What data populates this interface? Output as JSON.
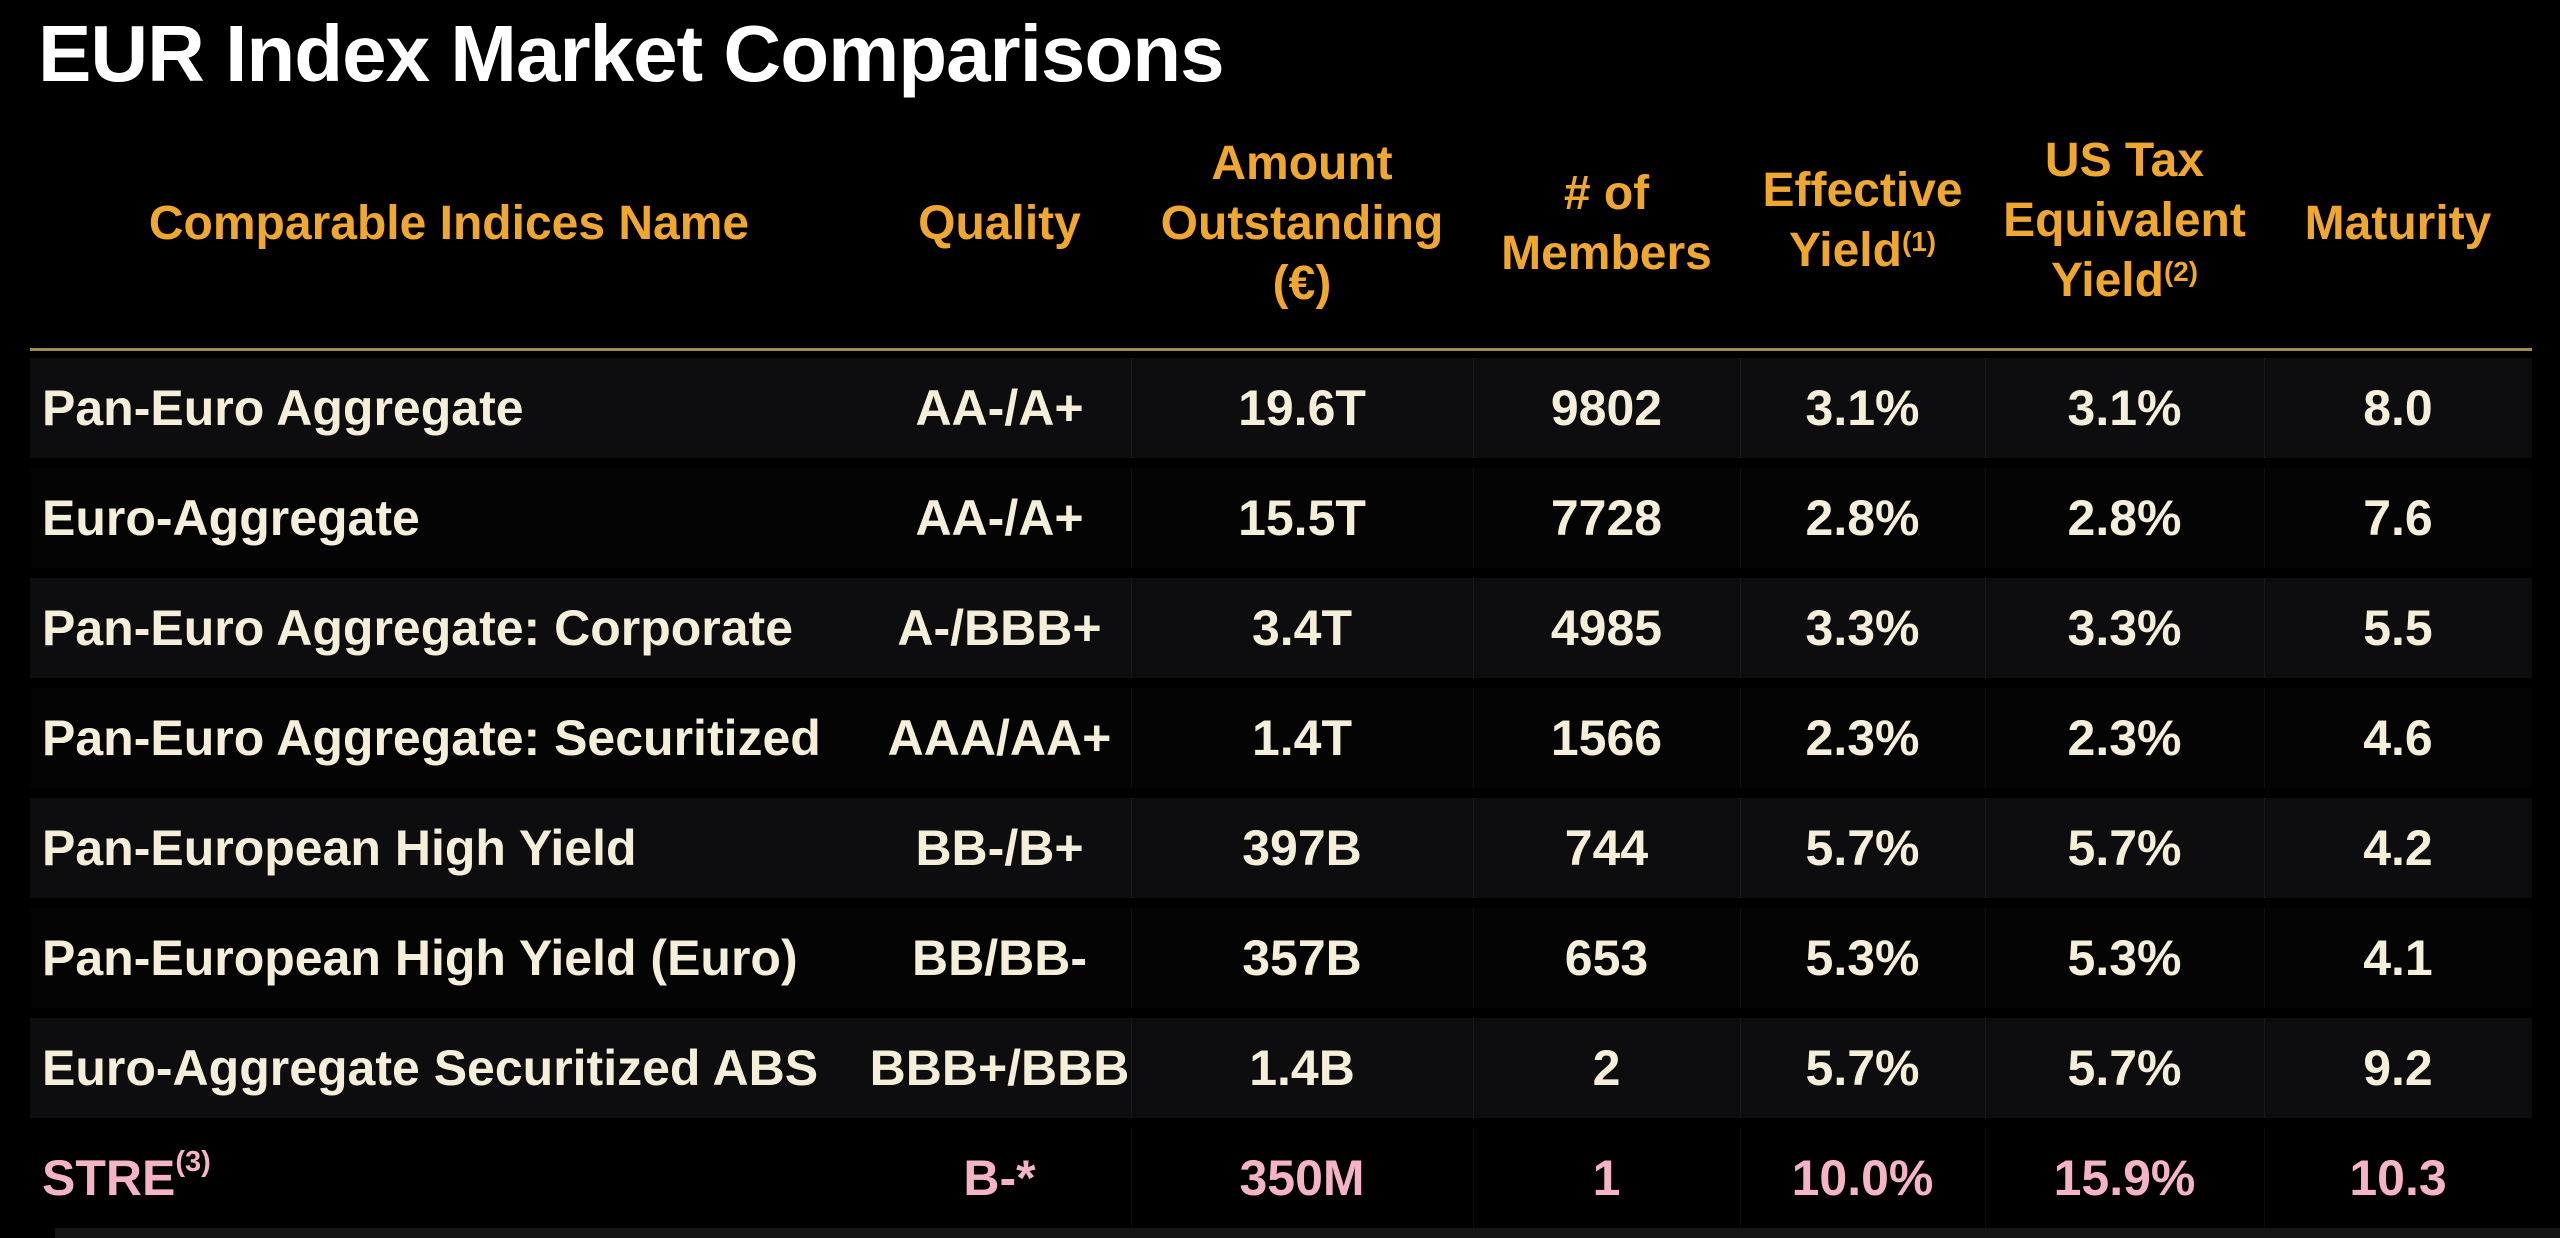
{
  "page": {
    "title": "EUR Index Market Comparisons"
  },
  "colors": {
    "background": "#000000",
    "title_text": "#FFFFFF",
    "header_text": "#F0A72F",
    "row_text": "#F5EFD9",
    "highlight_row_text": "#F4B4C5",
    "rule": "#A28C55",
    "row_bg_odd": "#0D0D10",
    "row_bg_even": "#040405",
    "bottom_strip": "#161616"
  },
  "table": {
    "columns": [
      {
        "id": "name",
        "lines": [
          "Comparable Indices Name"
        ]
      },
      {
        "id": "quality",
        "lines": [
          "Quality"
        ]
      },
      {
        "id": "amount",
        "lines": [
          "Amount",
          "Outstanding",
          "(€)"
        ]
      },
      {
        "id": "members",
        "lines": [
          "# of",
          "Members"
        ]
      },
      {
        "id": "effective_yield",
        "lines": [
          "Effective",
          "Yield"
        ],
        "sup": "(1)"
      },
      {
        "id": "us_tax_equivalent_yield",
        "lines": [
          "US Tax",
          "Equivalent",
          "Yield"
        ],
        "sup": "(2)"
      },
      {
        "id": "maturity",
        "lines": [
          "Maturity"
        ]
      }
    ],
    "rows": [
      {
        "name": "Pan-Euro Aggregate",
        "quality": "AA-/A+",
        "amount": "19.6T",
        "members": "9802",
        "effective_yield": "3.1%",
        "us_tax_equivalent_yield": "3.1%",
        "maturity": "8.0"
      },
      {
        "name": "Euro-Aggregate",
        "quality": "AA-/A+",
        "amount": "15.5T",
        "members": "7728",
        "effective_yield": "2.8%",
        "us_tax_equivalent_yield": "2.8%",
        "maturity": "7.6"
      },
      {
        "name": "Pan-Euro Aggregate: Corporate",
        "quality": "A-/BBB+",
        "amount": "3.4T",
        "members": "4985",
        "effective_yield": "3.3%",
        "us_tax_equivalent_yield": "3.3%",
        "maturity": "5.5"
      },
      {
        "name": "Pan-Euro Aggregate: Securitized",
        "quality": "AAA/AA+",
        "amount": "1.4T",
        "members": "1566",
        "effective_yield": "2.3%",
        "us_tax_equivalent_yield": "2.3%",
        "maturity": "4.6"
      },
      {
        "name": "Pan-European High Yield",
        "quality": "BB-/B+",
        "amount": "397B",
        "members": "744",
        "effective_yield": "5.7%",
        "us_tax_equivalent_yield": "5.7%",
        "maturity": "4.2"
      },
      {
        "name": "Pan-European High Yield (Euro)",
        "quality": "BB/BB-",
        "amount": "357B",
        "members": "653",
        "effective_yield": "5.3%",
        "us_tax_equivalent_yield": "5.3%",
        "maturity": "4.1"
      },
      {
        "name": "Euro-Aggregate Securitized ABS",
        "quality": "BBB+/BBB",
        "amount": "1.4B",
        "members": "2",
        "effective_yield": "5.7%",
        "us_tax_equivalent_yield": "5.7%",
        "maturity": "9.2"
      },
      {
        "name": "STRE",
        "name_sup": "(3)",
        "quality": "B-*",
        "amount": "350M",
        "members": "1",
        "effective_yield": "10.0%",
        "us_tax_equivalent_yield": "15.9%",
        "maturity": "10.3",
        "highlight": true
      }
    ]
  }
}
